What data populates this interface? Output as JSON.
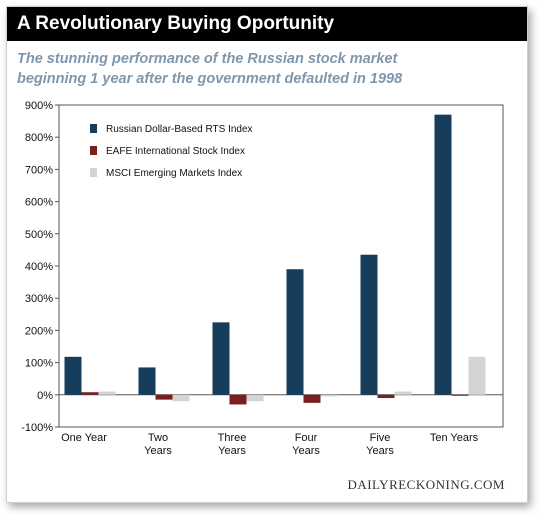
{
  "header": {
    "title": "A Revolutionary Buying Oportunity",
    "subtitle_line1": "The stunning performance of the Russian stock market",
    "subtitle_line2": "beginning 1 year after the government defaulted in 1998"
  },
  "source": "DAILYRECKONING.COM",
  "colors": {
    "rts": "#173d5c",
    "eafe": "#7a1f1f",
    "msci": "#d4d4d4"
  },
  "chart_data": {
    "type": "bar",
    "categories": [
      [
        "One Year"
      ],
      [
        "Two",
        "Years"
      ],
      [
        "Three",
        "Years"
      ],
      [
        "Four",
        "Years"
      ],
      [
        "Five",
        "Years"
      ],
      [
        "Ten Years"
      ]
    ],
    "series": [
      {
        "name": "Russian Dollar-Based RTS Index",
        "values": [
          118,
          85,
          225,
          390,
          435,
          870
        ]
      },
      {
        "name": "EAFE International Stock Index",
        "values": [
          8,
          -15,
          -30,
          -25,
          -10,
          -3
        ]
      },
      {
        "name": "MSCI Emerging Markets Index",
        "values": [
          10,
          -20,
          -20,
          -5,
          10,
          118
        ]
      }
    ],
    "ylim": [
      -100,
      900
    ],
    "yticks": [
      "-100%",
      "0%",
      "100%",
      "200%",
      "300%",
      "400%",
      "500%",
      "600%",
      "700%",
      "800%",
      "900%"
    ],
    "ytick_values": [
      -100,
      0,
      100,
      200,
      300,
      400,
      500,
      600,
      700,
      800,
      900
    ],
    "legend_position": "top-left",
    "grid": false
  }
}
